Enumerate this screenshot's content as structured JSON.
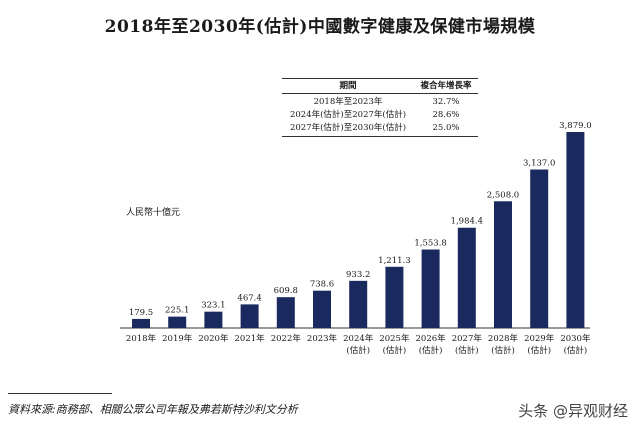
{
  "chart_data": {
    "type": "bar",
    "title": "2018年至2030年(估計)中國數字健康及保健市場規模",
    "ylabel": "人民幣十億元",
    "xlabel": "",
    "categories": [
      [
        "2018年"
      ],
      [
        "2019年"
      ],
      [
        "2020年"
      ],
      [
        "2021年"
      ],
      [
        "2022年"
      ],
      [
        "2023年"
      ],
      [
        "2024年",
        "(估計)"
      ],
      [
        "2025年",
        "(估計)"
      ],
      [
        "2026年",
        "(估計)"
      ],
      [
        "2027年",
        "(估計)"
      ],
      [
        "2028年",
        "(估計)"
      ],
      [
        "2029年",
        "(估計)"
      ],
      [
        "2030年",
        "(估計)"
      ]
    ],
    "values": [
      179.5,
      225.1,
      323.1,
      467.4,
      609.8,
      738.6,
      933.2,
      1211.3,
      1553.8,
      1984.4,
      2508.0,
      3137.0,
      3879.0
    ],
    "value_labels": [
      "179.5",
      "225.1",
      "323.1",
      "467.4",
      "609.8",
      "738.6",
      "933.2",
      "1,211.3",
      "1,553.8",
      "1,984.4",
      "2,508.0",
      "3,137.0",
      "3,879.0"
    ],
    "ylim": [
      0,
      4000
    ],
    "grid": false,
    "legend": "none",
    "bar_color": "#1b2a5e"
  },
  "cagr_table": {
    "headers": [
      "期間",
      "複合年增長率"
    ],
    "rows": [
      [
        "2018年至2023年",
        "32.7%"
      ],
      [
        "2024年(估計)至2027年(估計)",
        "28.6%"
      ],
      [
        "2027年(估計)至2030年(估計)",
        "25.0%"
      ]
    ]
  },
  "source": "資料來源:商務部、相關公眾公司年報及弗若斯特沙利文分析",
  "watermark": "头条 @异观财经"
}
